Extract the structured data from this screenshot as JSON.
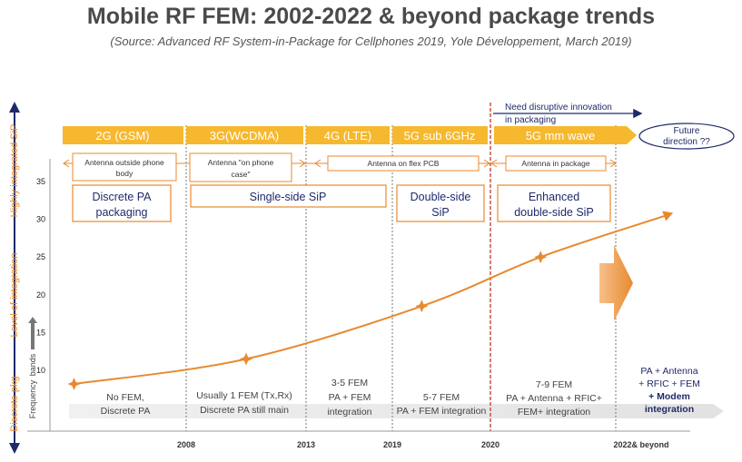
{
  "title": "Mobile RF FEM: 2002-2022 & beyond package trends",
  "subtitle": "(Source: Advanced RF System-in-Package for Cellphones 2019, Yole Développement, March 2019)",
  "colors": {
    "accent": "#f5b82e",
    "orange": "#e8892f",
    "navy": "#1f2a6b",
    "red": "#c0392b"
  },
  "chart_data": {
    "type": "line",
    "title": "Mobile RF FEM: 2002-2022 & beyond package trends",
    "ylabel_parts": [
      "Discrete pkg",
      "Level of integration",
      "Highly integrated SiP"
    ],
    "ylabel_secondary": [
      "Frequency",
      "bands"
    ],
    "y_ticks": [
      "10",
      "15",
      "20",
      "25",
      "30",
      "35"
    ],
    "ylim": [
      7,
      35
    ],
    "x_ticks": [
      "2008",
      "2013",
      "2019",
      "2020",
      "2022& beyond"
    ],
    "x_positions": [
      0,
      3,
      5,
      6,
      7
    ],
    "xlim": [
      0,
      7
    ],
    "series": [
      {
        "name": "Frequency bands",
        "x": [
          0.05,
          1.5,
          3.3,
          4.4,
          5.4
        ],
        "y": [
          8.2,
          11.5,
          18.5,
          25,
          30.5
        ],
        "end_arrow": true
      }
    ],
    "generations": [
      {
        "label": "2G (GSM)"
      },
      {
        "label": "3G(WCDMA)"
      },
      {
        "label": "4G (LTE)"
      },
      {
        "label": "5G sub 6GHz"
      },
      {
        "label": "5G mm wave"
      }
    ],
    "future_direction": {
      "line1": "Future",
      "line2": "direction ??"
    },
    "antenna_phases": [
      {
        "line1": "Antenna outside phone",
        "line2": "body"
      },
      {
        "line1": "Antenna \"on phone",
        "line2": "case\""
      },
      {
        "line1": "Antenna on flex PCB",
        "line2": ""
      },
      {
        "line1": "Antenna in package",
        "line2": ""
      }
    ],
    "packaging_boxes": [
      {
        "line1": "Discrete PA",
        "line2": "packaging"
      },
      {
        "line1": "Single-side SiP",
        "line2": ""
      },
      {
        "line1": "Double-side",
        "line2": "SiP"
      },
      {
        "line1": "Enhanced",
        "line2": "double-side SiP"
      }
    ],
    "disruptive": {
      "line1": "Need disruptive innovation",
      "line2": "in packaging"
    },
    "fem_descriptions": [
      {
        "lines": [
          "No FEM,",
          "Discrete PA"
        ]
      },
      {
        "lines": [
          "Usually 1 FEM (Tx,Rx)",
          "Discrete PA still main"
        ]
      },
      {
        "lines": [
          "3-5 FEM",
          "PA + FEM",
          "integration"
        ]
      },
      {
        "lines": [
          "5-7 FEM",
          "PA + FEM integration"
        ]
      },
      {
        "lines": [
          "7-9 FEM",
          "PA + Antenna + RFIC+",
          "FEM+ integration"
        ]
      }
    ],
    "final_integration": {
      "lines": [
        "PA + Antenna",
        "+ RFIC + FEM",
        "+ Modem",
        "integration"
      ]
    }
  }
}
